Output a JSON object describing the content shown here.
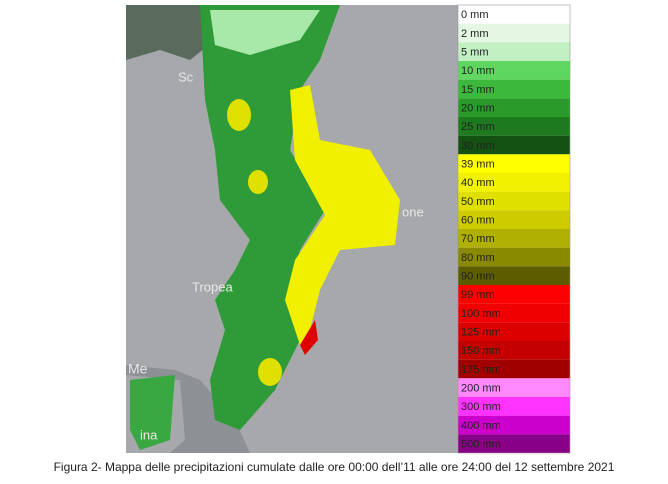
{
  "map": {
    "place_labels": [
      "Sc",
      "Tropea",
      "one",
      "Me",
      "ina"
    ]
  },
  "legend": {
    "items": [
      {
        "label": "0 mm",
        "color": "#ffffff"
      },
      {
        "label": "2 mm",
        "color": "#e3f7e3"
      },
      {
        "label": "5 mm",
        "color": "#c2f0c2"
      },
      {
        "label": "10 mm",
        "color": "#5fd65f"
      },
      {
        "label": "15 mm",
        "color": "#3cb83c"
      },
      {
        "label": "20 mm",
        "color": "#2a9a2a"
      },
      {
        "label": "25 mm",
        "color": "#1e7a1e"
      },
      {
        "label": "30 mm",
        "color": "#145214"
      },
      {
        "label": "39 mm",
        "color": "#ffff00"
      },
      {
        "label": "40 mm",
        "color": "#f2f200"
      },
      {
        "label": "50 mm",
        "color": "#e0e000"
      },
      {
        "label": "60 mm",
        "color": "#cccc00"
      },
      {
        "label": "70 mm",
        "color": "#b0b000"
      },
      {
        "label": "80 mm",
        "color": "#8a8a00"
      },
      {
        "label": "90 mm",
        "color": "#5c5c00"
      },
      {
        "label": "99 mm",
        "color": "#ff0000"
      },
      {
        "label": "100 mm",
        "color": "#f00000"
      },
      {
        "label": "125 mm",
        "color": "#dd0000"
      },
      {
        "label": "150 mm",
        "color": "#c40000"
      },
      {
        "label": "175 mm",
        "color": "#a00000"
      },
      {
        "label": "200 mm",
        "color": "#ff88ff"
      },
      {
        "label": "300 mm",
        "color": "#ff33ff"
      },
      {
        "label": "400 mm",
        "color": "#cc00cc"
      },
      {
        "label": "500 mm",
        "color": "#880088"
      }
    ]
  },
  "caption": "Figura 2- Mappa delle precipitazioni cumulate dalle ore 00:00 dell’11 alle ore 24:00 del 12 settembre 2021"
}
